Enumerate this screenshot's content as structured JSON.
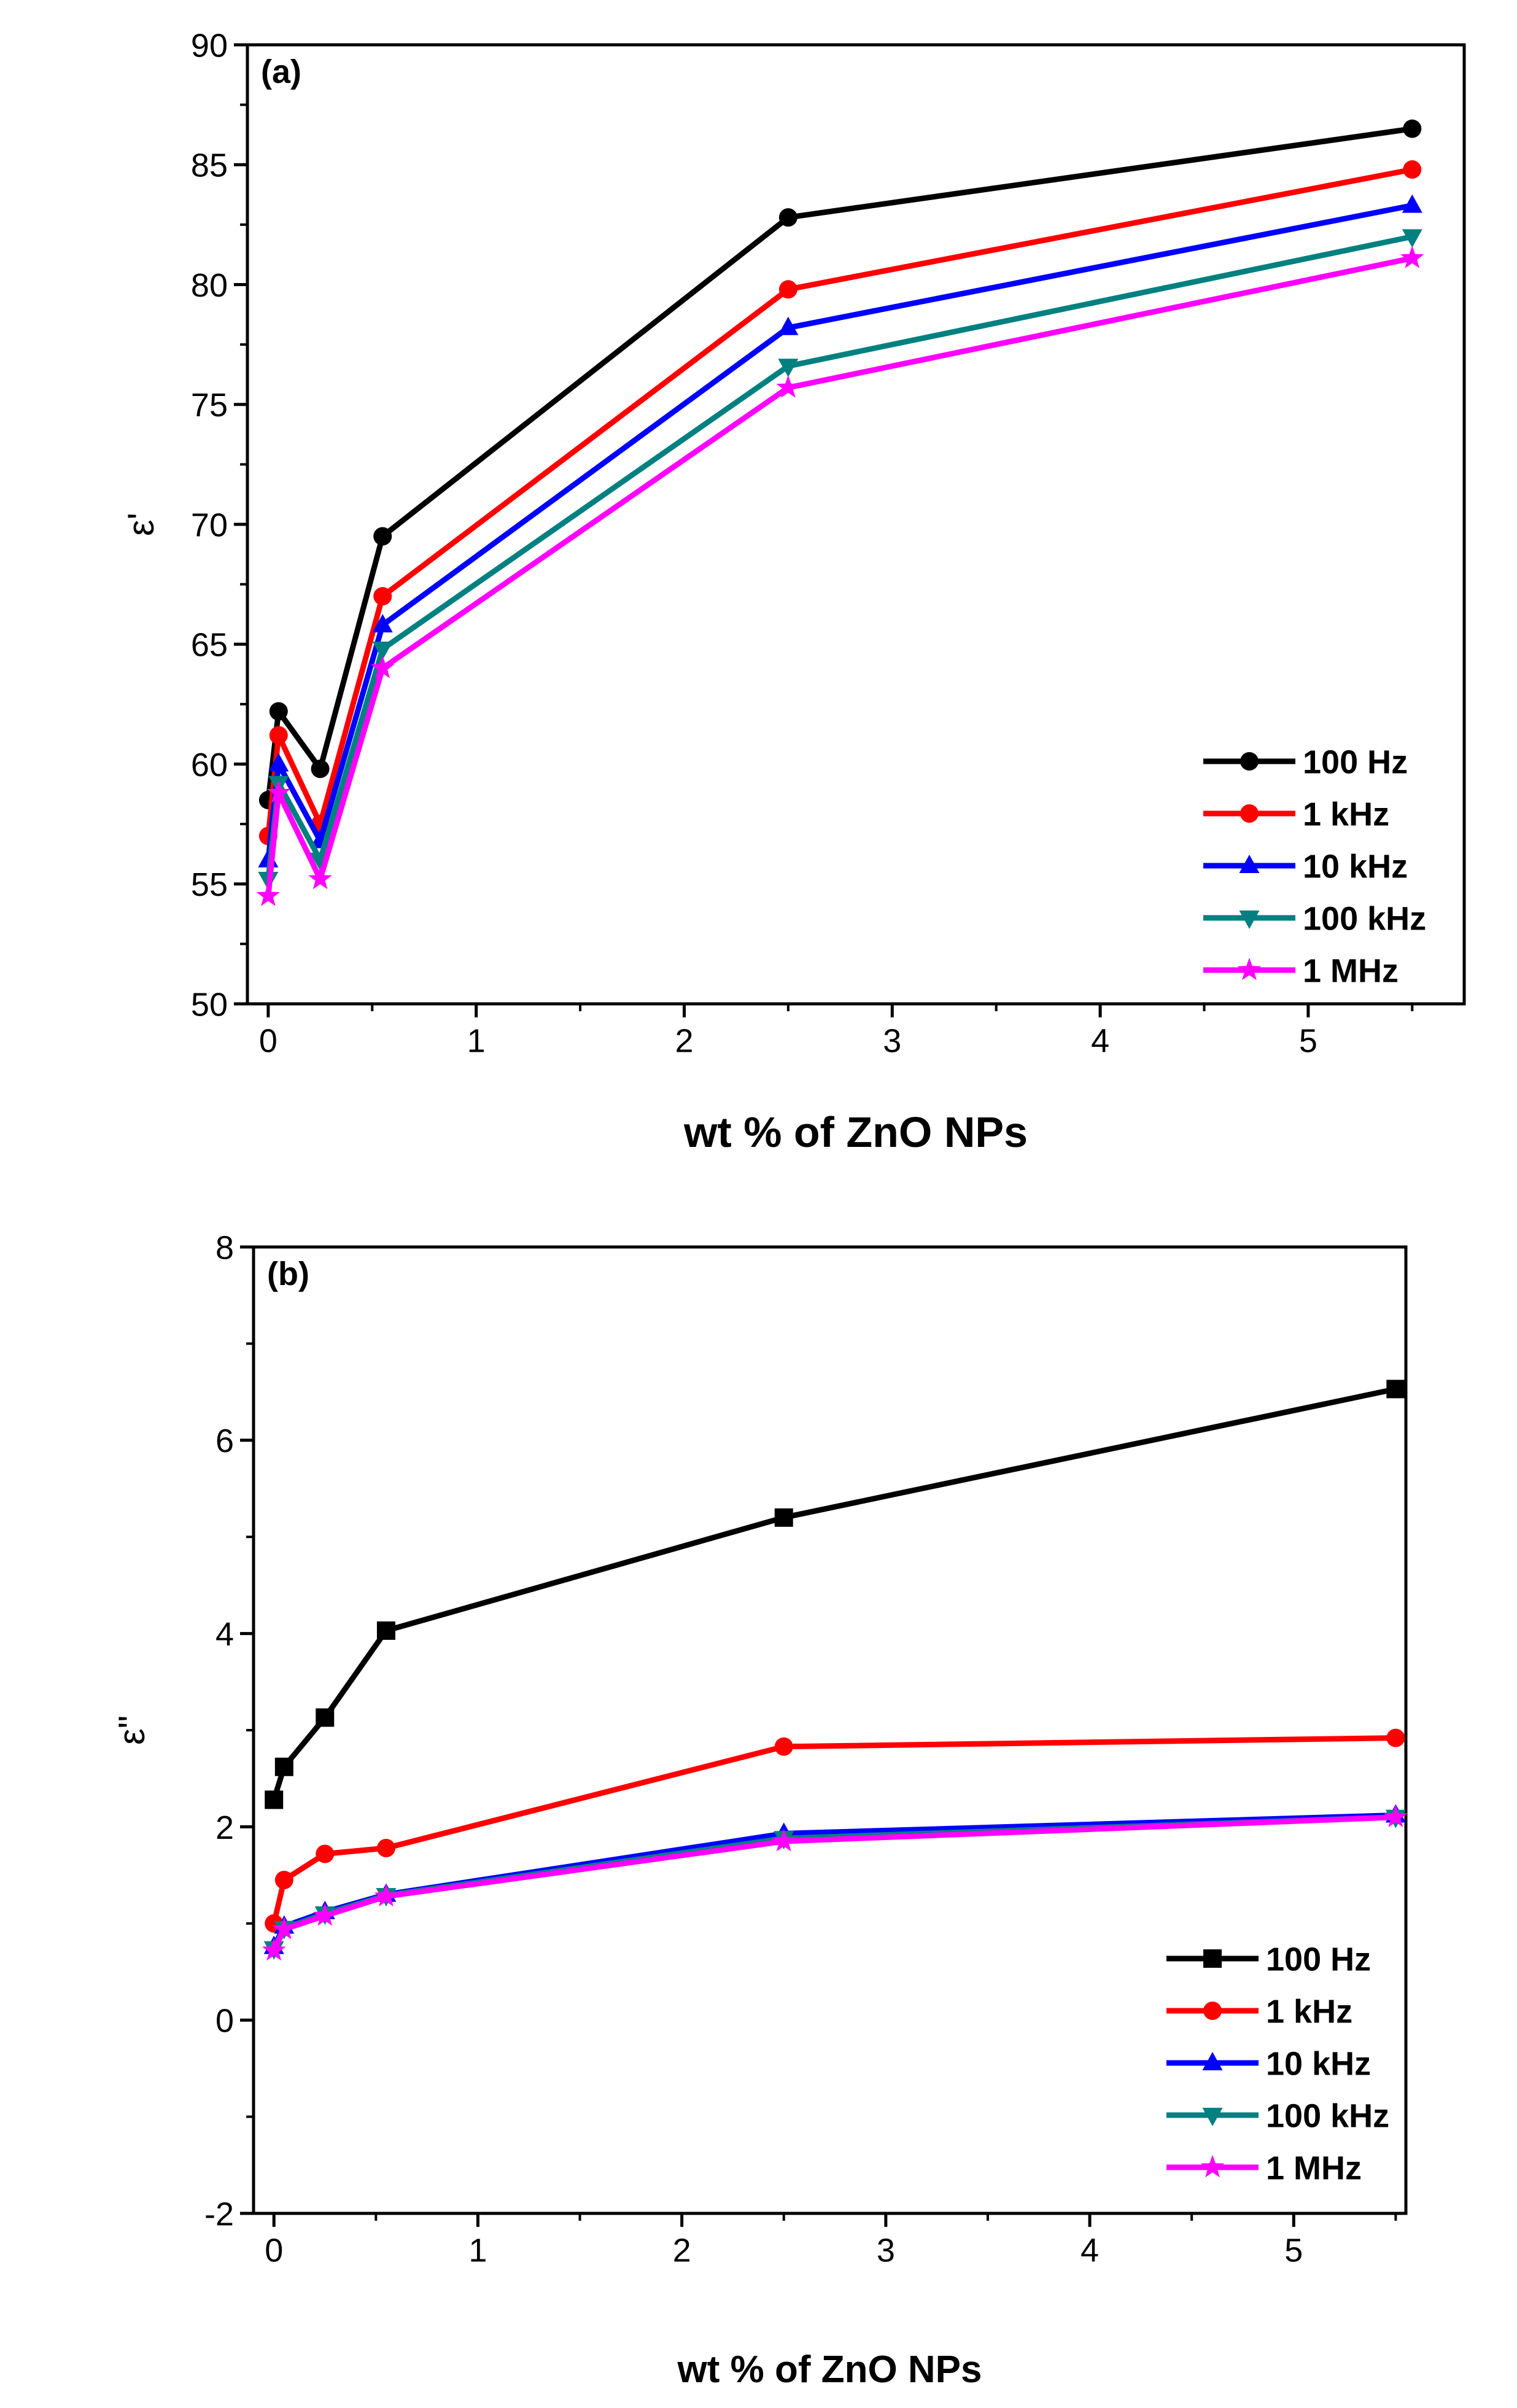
{
  "chart_data": [
    {
      "panel_label": "(a)",
      "type": "line",
      "xlabel": "wt % of ZnO NPs",
      "ylabel": "ε'",
      "xlim": [
        -0.1,
        5.75
      ],
      "ylim": [
        50,
        90
      ],
      "xticks": [
        0,
        1,
        2,
        3,
        4,
        5
      ],
      "yticks": [
        50,
        55,
        60,
        65,
        70,
        75,
        80,
        85,
        90
      ],
      "grid": false,
      "legend": "bottom-right",
      "x": [
        0,
        0.05,
        0.25,
        0.55,
        2.5,
        5.5
      ],
      "series": [
        {
          "name": "100 Hz",
          "color": "#000000",
          "marker": "circle",
          "values": [
            58.5,
            62.2,
            59.8,
            69.5,
            82.8,
            86.5
          ]
        },
        {
          "name": "1 kHz",
          "color": "#ff0000",
          "marker": "circle",
          "values": [
            57.0,
            61.2,
            57.5,
            67.0,
            79.8,
            84.8
          ]
        },
        {
          "name": "10 kHz",
          "color": "#0000ff",
          "marker": "triangle-up",
          "values": [
            56.0,
            60.0,
            56.8,
            65.8,
            78.2,
            83.3
          ]
        },
        {
          "name": "100 kHz",
          "color": "#008080",
          "marker": "triangle-down",
          "values": [
            55.2,
            59.2,
            56.0,
            64.8,
            76.6,
            82.0
          ]
        },
        {
          "name": "1 MHz",
          "color": "#ff00ff",
          "marker": "star",
          "values": [
            54.5,
            58.8,
            55.2,
            64.0,
            75.7,
            81.1
          ]
        }
      ]
    },
    {
      "panel_label": "(b)",
      "type": "line",
      "xlabel": "wt % of ZnO NPs",
      "ylabel": "ε\"",
      "xlim": [
        -0.1,
        5.55
      ],
      "ylim": [
        -2,
        8
      ],
      "xticks": [
        0,
        1,
        2,
        3,
        4,
        5
      ],
      "yticks": [
        -2,
        0,
        2,
        4,
        6,
        8
      ],
      "grid": false,
      "legend": "bottom-right",
      "x": [
        0,
        0.05,
        0.25,
        0.55,
        2.5,
        5.5
      ],
      "series": [
        {
          "name": "100 Hz",
          "color": "#000000",
          "marker": "square",
          "values": [
            2.28,
            2.62,
            3.13,
            4.03,
            5.2,
            6.53
          ]
        },
        {
          "name": "1 kHz",
          "color": "#ff0000",
          "marker": "circle",
          "values": [
            1.0,
            1.45,
            1.72,
            1.78,
            2.83,
            2.92
          ]
        },
        {
          "name": "10 kHz",
          "color": "#0000ff",
          "marker": "triangle-up",
          "values": [
            0.76,
            0.97,
            1.12,
            1.3,
            1.93,
            2.12
          ]
        },
        {
          "name": "100 kHz",
          "color": "#008080",
          "marker": "triangle-down",
          "values": [
            0.74,
            0.95,
            1.1,
            1.29,
            1.88,
            2.1
          ]
        },
        {
          "name": "1 MHz",
          "color": "#ff00ff",
          "marker": "star",
          "values": [
            0.72,
            0.94,
            1.08,
            1.28,
            1.85,
            2.1
          ]
        }
      ]
    }
  ]
}
